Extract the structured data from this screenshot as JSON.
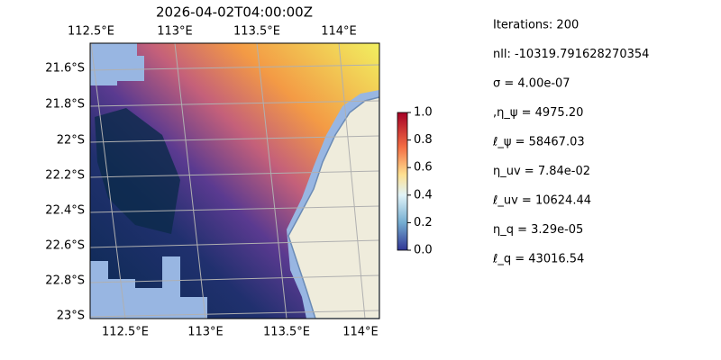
{
  "map": {
    "title": "2026-04-02T04:00:00Z",
    "lon_labels_top": [
      "112.5°E",
      "113°E",
      "113.5°E",
      "114°E"
    ],
    "lon_labels_bottom": [
      "112.5°E",
      "113°E",
      "113.5°E",
      "114°E"
    ],
    "lat_labels": [
      "21.6°S",
      "21.8°S",
      "22°S",
      "22.2°S",
      "22.4°S",
      "22.6°S",
      "22.8°S",
      "23°S"
    ],
    "colorbar": {
      "lim": [
        0,
        1
      ],
      "ticks": [
        {
          "value": 0,
          "label": "0.0"
        },
        {
          "value": 0.2,
          "label": "0.2"
        },
        {
          "value": 0.4,
          "label": "0.4"
        },
        {
          "value": 0.6,
          "label": "0.6"
        },
        {
          "value": 0.8,
          "label": "0.8"
        },
        {
          "value": 1,
          "label": "1.0"
        }
      ]
    }
  },
  "info": [
    "Iterations: 200",
    "nll: -10319.791628270354",
    "σ = 4.00e-07",
    ",η_ψ = 4975.20",
    "ℓ_ψ = 58467.03",
    "η_uv = 7.84e-02",
    "ℓ_uv = 10624.44",
    "η_q = 3.29e-05",
    "ℓ_q = 43016.54"
  ]
}
